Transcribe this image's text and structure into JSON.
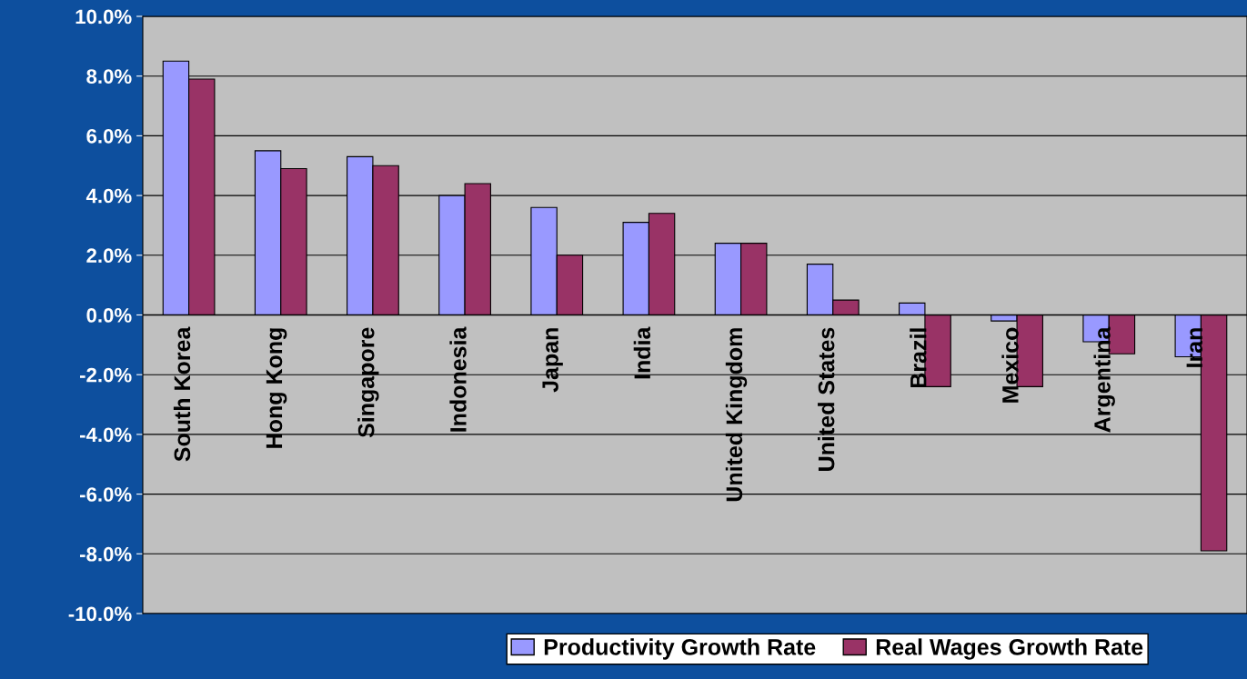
{
  "chart_data": {
    "type": "bar",
    "categories": [
      "South Korea",
      "Hong Kong",
      "Singapore",
      "Indonesia",
      "Japan",
      "India",
      "United Kingdom",
      "United States",
      "Brazil",
      "Mexico",
      "Argentina",
      "Iran"
    ],
    "series": [
      {
        "name": "Productivity Growth Rate",
        "color": "#9999ff",
        "values": [
          8.5,
          5.5,
          5.3,
          4.0,
          3.6,
          3.1,
          2.4,
          1.7,
          0.4,
          -0.2,
          -0.9,
          -1.4
        ]
      },
      {
        "name": "Real Wages Growth Rate",
        "color": "#993366",
        "values": [
          7.9,
          4.9,
          5.0,
          4.4,
          2.0,
          3.4,
          2.4,
          0.5,
          -2.4,
          -2.4,
          -1.3,
          -7.9
        ]
      }
    ],
    "ylim": [
      -10,
      10
    ],
    "yticks": [
      {
        "value": -10,
        "label": "-10.0%"
      },
      {
        "value": -8,
        "label": "-8.0%"
      },
      {
        "value": -6,
        "label": "-6.0%"
      },
      {
        "value": -4,
        "label": "-4.0%"
      },
      {
        "value": -2,
        "label": "-2.0%"
      },
      {
        "value": 0,
        "label": "0.0%"
      },
      {
        "value": 2,
        "label": "2.0%"
      },
      {
        "value": 4,
        "label": "4.0%"
      },
      {
        "value": 6,
        "label": "6.0%"
      },
      {
        "value": 8,
        "label": "8.0%"
      },
      {
        "value": 10,
        "label": "10.0%"
      }
    ],
    "grid": "y",
    "legend": "bottom"
  }
}
